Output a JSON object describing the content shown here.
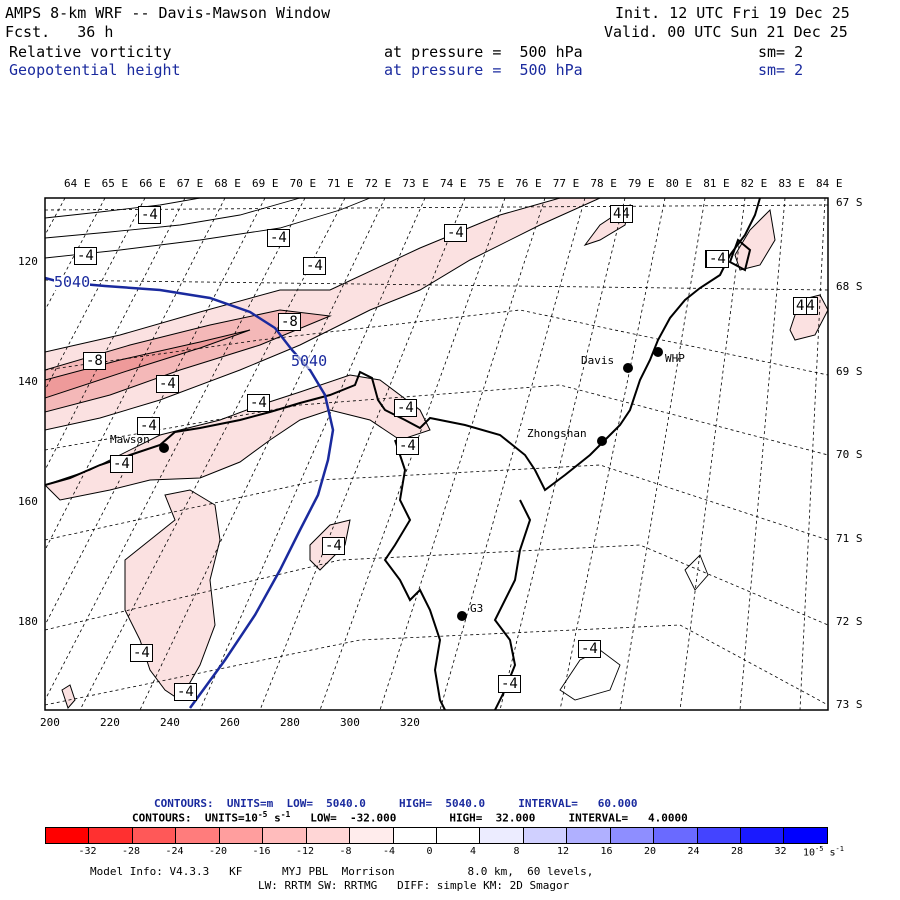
{
  "header": {
    "title": "AMPS 8-km WRF -- Davis-Mawson Window",
    "init": "Init. 12 UTC Fri 19 Dec 25",
    "fcst": "Fcst.   36 h",
    "valid": "Valid. 00 UTC Sun 21 Dec 25",
    "field1": {
      "name": "Relative vorticity",
      "level": "at pressure =  500 hPa",
      "sm": "sm= 2"
    },
    "field2": {
      "name": "Geopotential height",
      "level": "at pressure =  500 hPa",
      "sm": "sm= 2"
    }
  },
  "axes": {
    "top_lon": [
      "64 E",
      "65 E",
      "66 E",
      "67 E",
      "68 E",
      "69 E",
      "70 E",
      "71 E",
      "72 E",
      "73 E",
      "74 E",
      "75 E",
      "76 E",
      "77 E",
      "78 E",
      "79 E",
      "80 E",
      "81 E",
      "82 E",
      "83 E",
      "84 E"
    ],
    "right_lat": [
      "67 S",
      "68 S",
      "69 S",
      "70 S",
      "71 S",
      "72 S",
      "73 S"
    ],
    "bottom_x": [
      "200",
      "220",
      "240",
      "260",
      "280",
      "300",
      "320"
    ],
    "left_y": [
      "120",
      "140",
      "160",
      "180"
    ]
  },
  "stations": {
    "mawson": "Mawson",
    "davis": "Davis",
    "whp": "WHP",
    "zhongshan": "Zhongshan",
    "g3": "G3"
  },
  "contour_labels": {
    "height": "5040",
    "vort": [
      "-4",
      "4",
      "-4",
      "-4",
      "-4",
      "-4",
      "-4",
      "-4",
      "-8",
      "-8",
      "-4",
      "-4",
      "-4",
      "-4",
      "-4",
      "-4",
      "-4",
      "-4",
      "-4",
      "-4",
      "-4",
      "-4",
      "4",
      "-4",
      "4",
      "-4",
      "-4",
      "-4",
      "-4"
    ]
  },
  "legend": {
    "contours_height": "CONTOURS:  UNITS=m  LOW=  5040.0     HIGH=  5040.0     INTERVAL=   60.000",
    "contours_vort_prefix": "CONTOURS:  UNITS=10",
    "contours_vort_exp": "-5",
    "contours_vort_unit": " s",
    "contours_vort_unit_exp": "-1",
    "contours_vort_rest": "   LOW=  -32.000        HIGH=  32.000     INTERVAL=   4.0000",
    "colorbar_ticks": [
      "-32",
      "-28",
      "-24",
      "-20",
      "-16",
      "-12",
      "-8",
      "-4",
      "0",
      "4",
      "8",
      "12",
      "16",
      "20",
      "24",
      "28",
      "32"
    ],
    "colorbar_unit": "10",
    "colorbar_unit_exp": "-5",
    "colorbar_unit2": " s",
    "colorbar_unit2_exp": "-1",
    "colorbar_colors": [
      "#ff0000",
      "#ff3030",
      "#ff5858",
      "#ff7c7c",
      "#ff9e9e",
      "#ffbcbc",
      "#ffd6d6",
      "#ffecec",
      "#ffffff",
      "#ffffff",
      "#ececff",
      "#d0d0ff",
      "#b0b0ff",
      "#8e8eff",
      "#6a6aff",
      "#4444ff",
      "#1a1aff",
      "#0000ff"
    ]
  },
  "model_info": {
    "line1": "Model Info: V4.3.3   KF      MYJ PBL  Morrison           8.0 km,  60 levels,",
    "line2": "LW: RRTM SW: RRTMG   DIFF: simple KM: 2D Smagor"
  },
  "colors": {
    "height_contour": "#1a2a9e",
    "vort_fill_light": "#fbe1e1",
    "vort_fill_mid": "#f4b8b8",
    "vort_fill_dark": "#ee9a9a"
  }
}
